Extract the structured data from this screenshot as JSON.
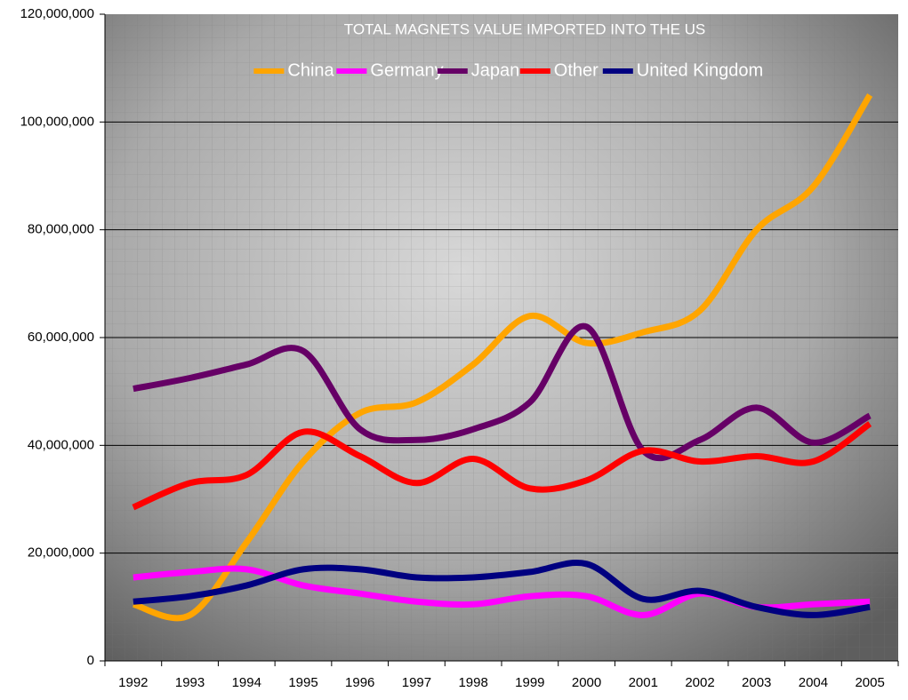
{
  "chart_data": {
    "type": "line",
    "title": "TOTAL MAGNETS VALUE IMPORTED INTO THE US",
    "categories": [
      "1992",
      "1993",
      "1994",
      "1995",
      "1996",
      "1997",
      "1998",
      "1999",
      "2000",
      "2001",
      "2002",
      "2003",
      "2004",
      "2005"
    ],
    "series": [
      {
        "name": "China",
        "color": "#ffa500",
        "values": [
          10500000,
          8500000,
          22000000,
          37000000,
          46000000,
          48000000,
          55000000,
          64000000,
          59000000,
          61000000,
          65000000,
          80000000,
          88000000,
          105000000
        ]
      },
      {
        "name": "Germany",
        "color": "#ff00ff",
        "values": [
          15500000,
          16500000,
          17000000,
          14000000,
          12500000,
          11000000,
          10500000,
          12000000,
          12000000,
          8500000,
          12500000,
          10000000,
          10500000,
          11000000
        ]
      },
      {
        "name": "Japan",
        "color": "#660066",
        "values": [
          50500000,
          52500000,
          55000000,
          57500000,
          43000000,
          41000000,
          43000000,
          48000000,
          62000000,
          39000000,
          41000000,
          47000000,
          40500000,
          45500000
        ]
      },
      {
        "name": "Other",
        "color": "#ff0000",
        "values": [
          28500000,
          33000000,
          34500000,
          42500000,
          38000000,
          33000000,
          37500000,
          32000000,
          33500000,
          39000000,
          37000000,
          38000000,
          37000000,
          44000000
        ]
      },
      {
        "name": "United Kingdom",
        "color": "#000080",
        "values": [
          11000000,
          12000000,
          14000000,
          17000000,
          17000000,
          15500000,
          15500000,
          16500000,
          18000000,
          11500000,
          13000000,
          10000000,
          8500000,
          10000000
        ]
      }
    ],
    "ylim": [
      0,
      120000000
    ],
    "yticks": [
      {
        "value": 0,
        "label": "0"
      },
      {
        "value": 20000000,
        "label": "20,000,000"
      },
      {
        "value": 40000000,
        "label": "40,000,000"
      },
      {
        "value": 60000000,
        "label": "60,000,000"
      },
      {
        "value": 80000000,
        "label": "80,000,000"
      },
      {
        "value": 100000000,
        "label": "100,000,000"
      },
      {
        "value": 120000000,
        "label": "120,000,000"
      }
    ],
    "grid": true,
    "legend": "top"
  }
}
